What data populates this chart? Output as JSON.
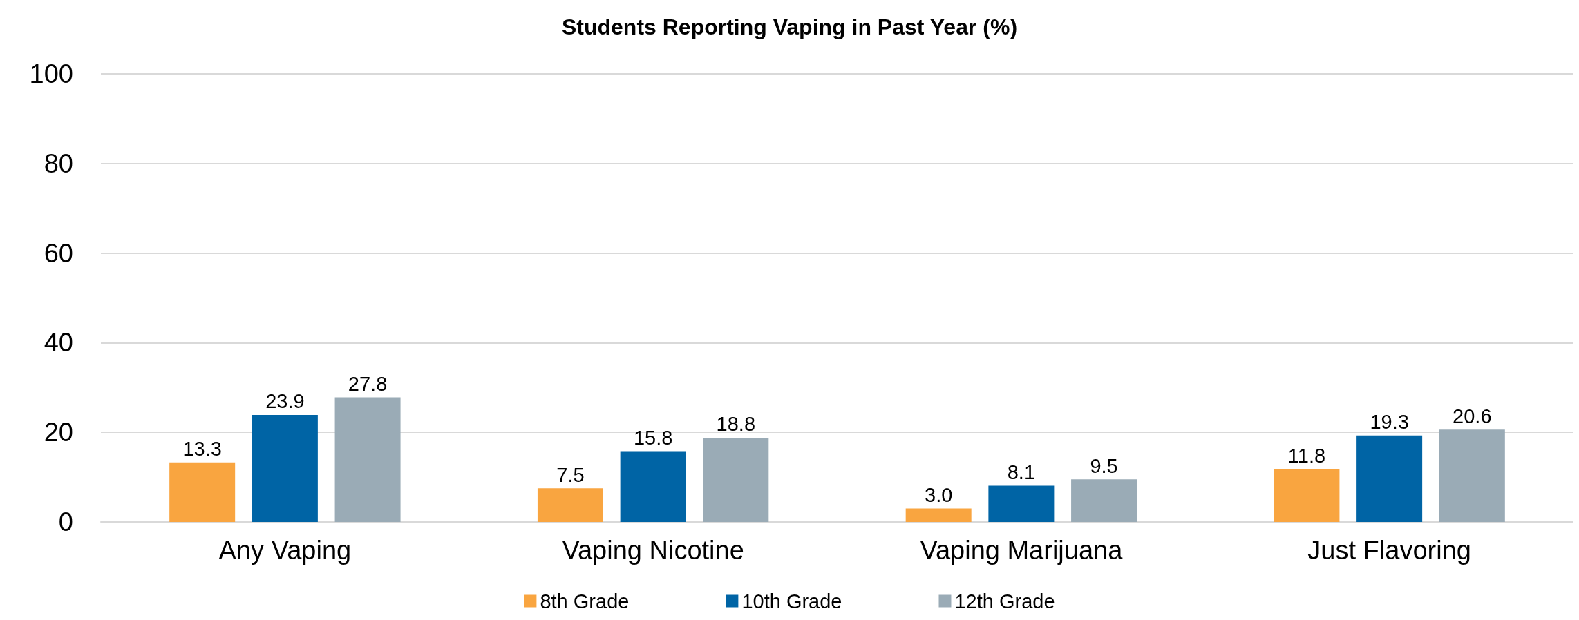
{
  "chart_data": {
    "type": "bar",
    "title": "Students Reporting Vaping in Past Year (%)",
    "categories": [
      "Any Vaping",
      "Vaping Nicotine",
      "Vaping Marijuana",
      "Just Flavoring"
    ],
    "series": [
      {
        "name": "8th Grade",
        "color": "#f9a540",
        "values": [
          13.3,
          7.5,
          3.0,
          11.8
        ],
        "value_labels": [
          "13.3",
          "7.5",
          "3.0",
          "11.8"
        ]
      },
      {
        "name": "10th Grade",
        "color": "#0064a5",
        "values": [
          23.9,
          15.8,
          8.1,
          19.3
        ],
        "value_labels": [
          "23.9",
          "15.8",
          "8.1",
          "19.3"
        ]
      },
      {
        "name": "12th Grade",
        "color": "#9aabb6",
        "values": [
          27.8,
          18.8,
          9.5,
          20.6
        ],
        "value_labels": [
          "27.8",
          "18.8",
          "9.5",
          "20.6"
        ]
      }
    ],
    "ylim": [
      0,
      100
    ],
    "yticks": [
      0,
      20,
      40,
      60,
      80,
      100
    ],
    "grid": "y",
    "legend": "bottom"
  }
}
